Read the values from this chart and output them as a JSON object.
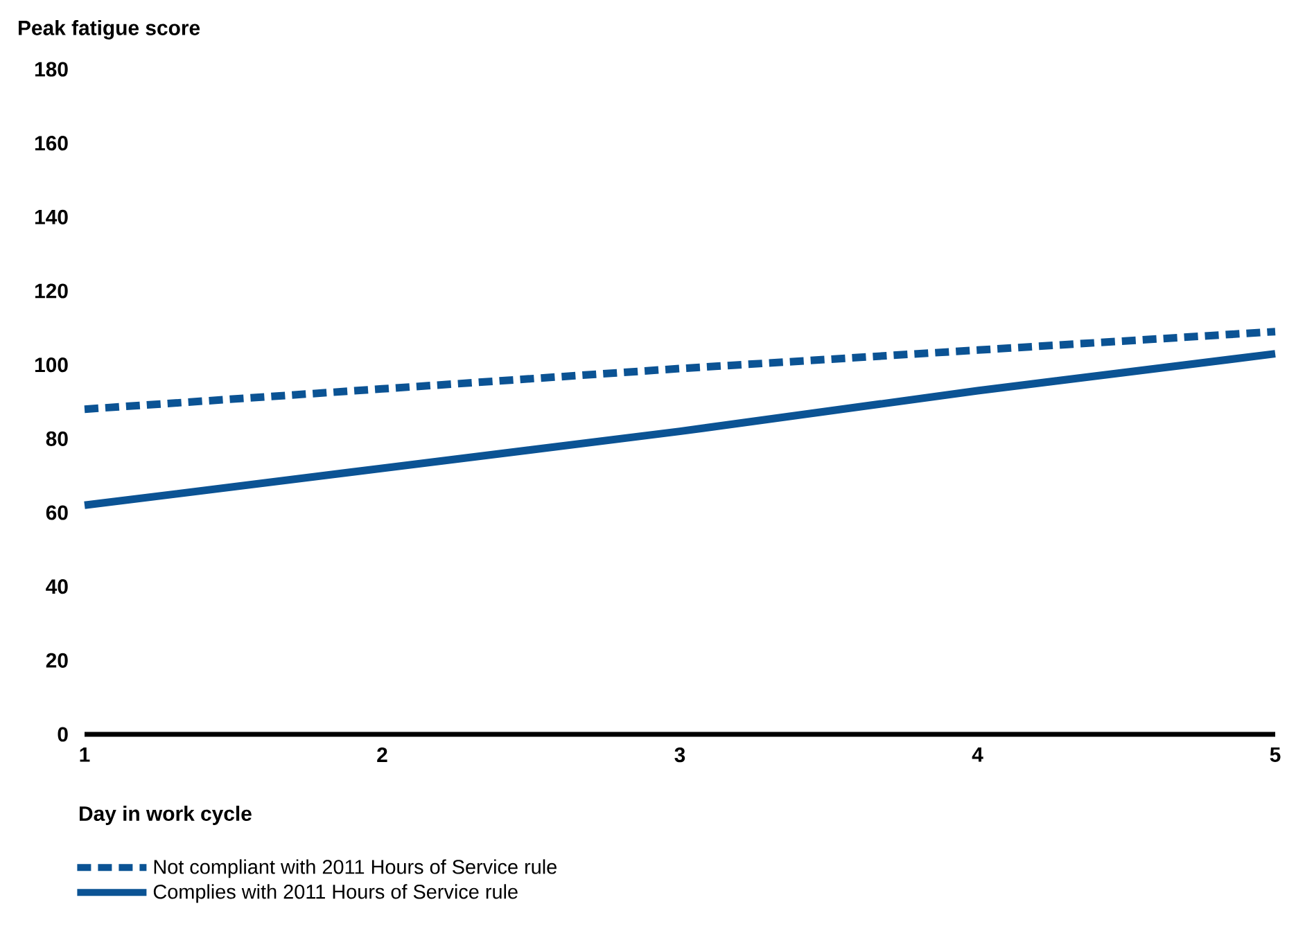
{
  "chart_data": {
    "type": "line",
    "xlabel": "Day in work cycle",
    "ylabel": "Peak fatigue score",
    "x": [
      1,
      2,
      3,
      4,
      5
    ],
    "xlim": [
      1,
      5
    ],
    "xticks": [
      1,
      2,
      3,
      4,
      5
    ],
    "ylim": [
      0,
      180
    ],
    "yticks": [
      0,
      20,
      40,
      60,
      80,
      100,
      120,
      140,
      160,
      180
    ],
    "grid": false,
    "legend": "bottom",
    "marker": "none",
    "series": [
      {
        "name": "Not compliant with 2011 Hours of Service rule",
        "color": "#0b5394",
        "line_style": "dashed",
        "values": [
          88,
          93.5,
          99,
          104,
          109
        ]
      },
      {
        "name": "Complies with 2011 Hours of Service rule",
        "color": "#0b5394",
        "line_style": "solid",
        "values": [
          62,
          72,
          82,
          93,
          103
        ]
      }
    ]
  }
}
